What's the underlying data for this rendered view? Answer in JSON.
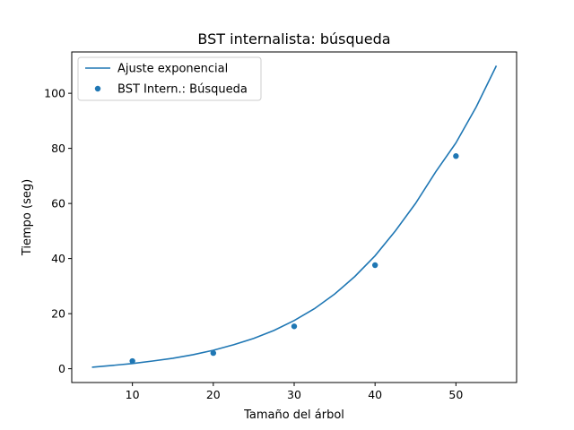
{
  "chart_data": {
    "type": "scatter",
    "title": "BST internalista: búsqueda",
    "xlabel": "Tamaño del árbol",
    "ylabel": "Tiempo (seg)",
    "xlim": [
      2.5,
      57.5
    ],
    "ylim": [
      -5.0,
      115.0
    ],
    "xticks": [
      10,
      20,
      30,
      40,
      50
    ],
    "yticks": [
      0,
      20,
      40,
      60,
      80,
      100
    ],
    "legend_position": "upper-left",
    "grid": false,
    "series": [
      {
        "name": "Ajuste exponencial",
        "kind": "line",
        "color": "#1f77b4",
        "x": [
          5,
          7.5,
          10,
          12.5,
          15,
          17.5,
          20,
          22.5,
          25,
          27.5,
          30,
          32.5,
          35,
          37.5,
          40,
          42.5,
          45,
          47.5,
          50,
          52.5,
          55
        ],
        "y": [
          0.55,
          1.2,
          1.9,
          2.8,
          3.8,
          5.1,
          6.7,
          8.7,
          11.0,
          13.9,
          17.5,
          21.8,
          27.1,
          33.5,
          41.0,
          50.0,
          60.0,
          71.5,
          82.0,
          95.0,
          110.0
        ]
      },
      {
        "name": "BST Intern.: Búsqueda",
        "kind": "scatter",
        "color": "#1f77b4",
        "x": [
          10,
          20,
          30,
          40,
          50
        ],
        "y": [
          2.8,
          5.7,
          15.4,
          37.6,
          77.2
        ]
      }
    ]
  }
}
